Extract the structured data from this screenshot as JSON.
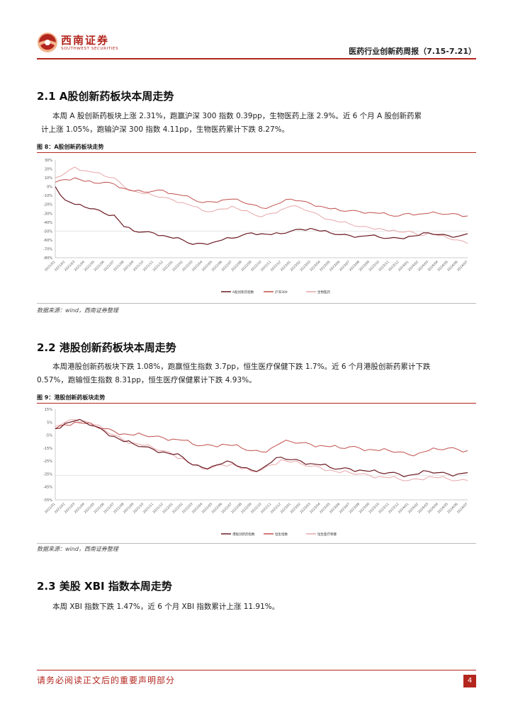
{
  "header": {
    "logo_cn": "西南证券",
    "logo_en": "SOUTHWEST SECURITIES",
    "report_title": "医药行业创新药周报（7.15-7.21）"
  },
  "colors": {
    "brand": "#b3261e",
    "series_dark": "#6b1a22",
    "series_mid": "#c0504d",
    "series_light": "#e6a6a8"
  },
  "sections": [
    {
      "title": "2.1 A股创新药板块本周走势",
      "paragraph": [
        "本周 A 股创新药板块上涨 2.31%，跑赢沪深 300 指数 0.39pp，生物医药上涨 2.9%。近 6 个月 A 股创新药累",
        "计上涨 1.05%，跑输沪深 300 指数 4.11pp，生物医药累计下跌 8.27%。"
      ],
      "figure_title": "图 8：A股创新药板块走势",
      "source": "数据来源：wind，西南证券整理"
    },
    {
      "title": "2.2 港股创新药板块本周走势",
      "paragraph": [
        "本周港股创新药板块下跌 1.08%，跑赢恒生指数 3.7pp，恒生医疗保健下跌 1.7%。近 6 个月港股创新药累计下跌",
        "0.57%，跑输恒生指数 8.31pp，恒生医疗保健累计下跌 4.93%。"
      ],
      "figure_title": "图 9：港股创新药板块走势",
      "source": "数据来源：wind，西南证券整理"
    },
    {
      "title": "2.3 美股 XBI 指数本周走势",
      "paragraph": [
        "本周 XBI 指数下跌 1.47%，近 6 个月 XBI 指数累计上涨 11.91%。"
      ]
    }
  ],
  "chart_data": [
    {
      "type": "line",
      "ylim": [
        -80,
        30
      ],
      "y_ticks": [
        "30%",
        "20%",
        "10%",
        "0%",
        "-10%",
        "-20%",
        "-30%",
        "-40%",
        "-50%",
        "-60%",
        "-70%",
        "-80%"
      ],
      "x_ticks": [
        "2021/01",
        "2021/02",
        "2021/03",
        "2021/04",
        "2021/05",
        "2021/06",
        "2021/07",
        "2021/08",
        "2021/09",
        "2021/10",
        "2021/11",
        "2021/12",
        "2022/01",
        "2022/02",
        "2022/03",
        "2022/04",
        "2022/05",
        "2022/06",
        "2022/07",
        "2022/08",
        "2022/09",
        "2022/10",
        "2022/11",
        "2022/12",
        "2023/01",
        "2023/02",
        "2023/03",
        "2023/04",
        "2023/05",
        "2023/06",
        "2023/07",
        "2023/08",
        "2023/09",
        "2023/10",
        "2023/11",
        "2023/12",
        "2024/01",
        "2024/02",
        "2024/03",
        "2024/04",
        "2024/05",
        "2024/06",
        "2024/07"
      ],
      "series": [
        {
          "name": "A股创新药指数",
          "values": [
            0,
            -15,
            -20,
            -23,
            -25,
            -30,
            -32,
            -45,
            -50,
            -51,
            -52,
            -55,
            -58,
            -60,
            -65,
            -64,
            -63,
            -60,
            -58,
            -55,
            -52,
            -53,
            -54,
            -53,
            -50,
            -48,
            -47,
            -50,
            -52,
            -54,
            -55,
            -56,
            -55,
            -57,
            -58,
            -58,
            -56,
            -55,
            -52,
            -54,
            -55,
            -56,
            -53
          ]
        },
        {
          "name": "沪深300",
          "values": [
            5,
            8,
            10,
            6,
            4,
            5,
            3,
            -2,
            -5,
            -6,
            -5,
            -4,
            -8,
            -10,
            -14,
            -18,
            -17,
            -15,
            -14,
            -17,
            -20,
            -24,
            -22,
            -18,
            -14,
            -16,
            -19,
            -22,
            -25,
            -27,
            -27,
            -28,
            -29,
            -30,
            -32,
            -33,
            -30,
            -31,
            -30,
            -30,
            -31,
            -31,
            -33
          ]
        },
        {
          "name": "生物医药",
          "values": [
            10,
            15,
            22,
            18,
            16,
            12,
            10,
            0,
            -5,
            -8,
            -10,
            -12,
            -15,
            -18,
            -22,
            -27,
            -28,
            -25,
            -22,
            -27,
            -30,
            -34,
            -30,
            -26,
            -22,
            -24,
            -28,
            -33,
            -37,
            -40,
            -42,
            -45,
            -46,
            -47,
            -50,
            -51,
            -50,
            -55,
            -52,
            -55,
            -58,
            -60,
            -64
          ]
        }
      ]
    },
    {
      "type": "line",
      "ylim": [
        -55,
        15
      ],
      "y_ticks": [
        "15%",
        "5%",
        "-5%",
        "-15%",
        "-25%",
        "-35%",
        "-45%",
        "-55%"
      ],
      "x_ticks": [
        "2021/01",
        "2021/02",
        "2021/03",
        "2021/04",
        "2021/05",
        "2021/06",
        "2021/07",
        "2021/08",
        "2021/09",
        "2021/10",
        "2021/11",
        "2021/12",
        "2022/01",
        "2022/02",
        "2022/03",
        "2022/04",
        "2022/05",
        "2022/06",
        "2022/07",
        "2022/08",
        "2022/09",
        "2022/10",
        "2022/11",
        "2022/12",
        "2023/01",
        "2023/02",
        "2023/03",
        "2023/04",
        "2023/05",
        "2023/06",
        "2023/07",
        "2023/08",
        "2023/09",
        "2023/10",
        "2023/11",
        "2023/12",
        "2024/01",
        "2024/02",
        "2024/03",
        "2024/04",
        "2024/05",
        "2024/06",
        "2024/07"
      ],
      "series": [
        {
          "name": "港股创新药指数",
          "values": [
            0,
            4,
            6,
            5,
            2,
            -2,
            -6,
            -10,
            -12,
            -14,
            -16,
            -18,
            -20,
            -22,
            -28,
            -30,
            -29,
            -27,
            -26,
            -30,
            -32,
            -31,
            -26,
            -22,
            -24,
            -25,
            -27,
            -28,
            -30,
            -31,
            -31,
            -32,
            -33,
            -34,
            -34,
            -35,
            -36,
            -35,
            -33,
            -34,
            -35,
            -35,
            -34
          ]
        },
        {
          "name": "恒生指数",
          "values": [
            0,
            3,
            5,
            4,
            2,
            0,
            -2,
            -4,
            -5,
            -5,
            -6,
            -7,
            -8,
            -9,
            -12,
            -13,
            -13,
            -12,
            -13,
            -15,
            -17,
            -18,
            -15,
            -11,
            -10,
            -11,
            -12,
            -13,
            -14,
            -15,
            -14,
            -15,
            -16,
            -17,
            -17,
            -18,
            -20,
            -19,
            -17,
            -16,
            -15,
            -16,
            -17
          ]
        },
        {
          "name": "恒生医疗保健",
          "values": [
            2,
            5,
            7,
            6,
            3,
            -1,
            -5,
            -9,
            -11,
            -13,
            -15,
            -17,
            -20,
            -23,
            -28,
            -31,
            -30,
            -28,
            -27,
            -31,
            -33,
            -32,
            -28,
            -24,
            -26,
            -27,
            -29,
            -30,
            -32,
            -34,
            -34,
            -35,
            -36,
            -37,
            -38,
            -39,
            -40,
            -39,
            -37,
            -38,
            -39,
            -40,
            -40
          ]
        }
      ]
    }
  ],
  "footer": {
    "disclaimer": "请务必阅读正文后的重要声明部分",
    "page": "4"
  }
}
